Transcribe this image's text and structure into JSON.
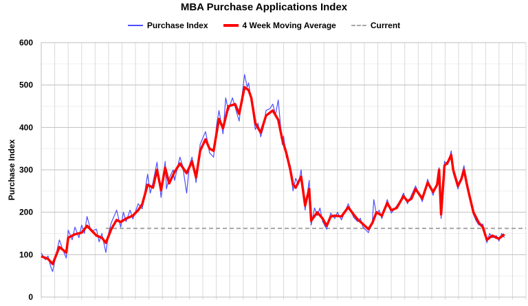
{
  "chart_data": {
    "type": "line",
    "title": "MBA Purchase Applications Index",
    "ylabel": "Purchase Index",
    "xlabel": "",
    "ylim": [
      0,
      600
    ],
    "yticks": [
      0,
      100,
      200,
      300,
      400,
      500,
      600
    ],
    "xlim": [
      1990,
      2026
    ],
    "grid": true,
    "legend": "top",
    "current_value": 162,
    "current_from": 1994.8,
    "series": [
      {
        "name": "Purchase Index",
        "color": "#4d4dff",
        "points": [
          [
            1990,
            104
          ],
          [
            1990.3,
            88
          ],
          [
            1990.5,
            97
          ],
          [
            1990.7,
            72
          ],
          [
            1990.85,
            60
          ],
          [
            1991.1,
            100
          ],
          [
            1991.35,
            135
          ],
          [
            1991.6,
            112
          ],
          [
            1991.86,
            92
          ],
          [
            1992,
            158
          ],
          [
            1992.3,
            135
          ],
          [
            1992.5,
            165
          ],
          [
            1992.8,
            140
          ],
          [
            1993,
            170
          ],
          [
            1993.2,
            150
          ],
          [
            1993.4,
            190
          ],
          [
            1993.7,
            155
          ],
          [
            1994.1,
            160
          ],
          [
            1994.3,
            130
          ],
          [
            1994.5,
            150
          ],
          [
            1994.8,
            105
          ],
          [
            1995,
            150
          ],
          [
            1995.2,
            175
          ],
          [
            1995.6,
            205
          ],
          [
            1995.9,
            165
          ],
          [
            1996.1,
            200
          ],
          [
            1996.3,
            178
          ],
          [
            1996.6,
            205
          ],
          [
            1996.8,
            184
          ],
          [
            1997.2,
            220
          ],
          [
            1997.5,
            208
          ],
          [
            1997.9,
            290
          ],
          [
            1998.1,
            245
          ],
          [
            1998.3,
            270
          ],
          [
            1998.6,
            318
          ],
          [
            1998.9,
            235
          ],
          [
            1999.2,
            320
          ],
          [
            1999.3,
            255
          ],
          [
            1999.5,
            280
          ],
          [
            1999.8,
            300
          ],
          [
            1999.9,
            275
          ],
          [
            2000.3,
            330
          ],
          [
            2000.5,
            310
          ],
          [
            2000.8,
            245
          ],
          [
            2001.0,
            310
          ],
          [
            2001.2,
            330
          ],
          [
            2001.5,
            270
          ],
          [
            2001.8,
            360
          ],
          [
            2002.2,
            390
          ],
          [
            2002.4,
            360
          ],
          [
            2002.5,
            340
          ],
          [
            2002.8,
            330
          ],
          [
            2003.0,
            400
          ],
          [
            2003.2,
            440
          ],
          [
            2003.5,
            385
          ],
          [
            2003.7,
            470
          ],
          [
            2003.9,
            440
          ],
          [
            2004.2,
            470
          ],
          [
            2004.4,
            448
          ],
          [
            2004.7,
            415
          ],
          [
            2004.9,
            470
          ],
          [
            2005.1,
            525
          ],
          [
            2005.3,
            495
          ],
          [
            2005.4,
            505
          ],
          [
            2005.6,
            462
          ],
          [
            2005.9,
            395
          ],
          [
            2006.1,
            410
          ],
          [
            2006.3,
            378
          ],
          [
            2006.5,
            400
          ],
          [
            2006.7,
            440
          ],
          [
            2007.0,
            445
          ],
          [
            2007.2,
            455
          ],
          [
            2007.4,
            430
          ],
          [
            2007.6,
            465
          ],
          [
            2007.9,
            360
          ],
          [
            2008.0,
            380
          ],
          [
            2008.2,
            330
          ],
          [
            2008.5,
            310
          ],
          [
            2008.7,
            250
          ],
          [
            2008.9,
            280
          ],
          [
            2009.1,
            265
          ],
          [
            2009.3,
            300
          ],
          [
            2009.6,
            205
          ],
          [
            2009.9,
            275
          ],
          [
            2010.05,
            170
          ],
          [
            2010.3,
            210
          ],
          [
            2010.5,
            192
          ],
          [
            2010.7,
            210
          ],
          [
            2010.9,
            178
          ],
          [
            2011.2,
            160
          ],
          [
            2011.5,
            198
          ],
          [
            2011.8,
            185
          ],
          [
            2012.0,
            200
          ],
          [
            2012.3,
            182
          ],
          [
            2012.8,
            220
          ],
          [
            2013.2,
            188
          ],
          [
            2013.5,
            178
          ],
          [
            2013.7,
            186
          ],
          [
            2013.9,
            165
          ],
          [
            2014.3,
            152
          ],
          [
            2014.6,
            180
          ],
          [
            2014.7,
            230
          ],
          [
            2014.9,
            195
          ],
          [
            2015.1,
            205
          ],
          [
            2015.3,
            185
          ],
          [
            2015.7,
            230
          ],
          [
            2016.0,
            198
          ],
          [
            2016.4,
            215
          ],
          [
            2016.7,
            230
          ],
          [
            2016.9,
            245
          ],
          [
            2017.2,
            220
          ],
          [
            2017.5,
            240
          ],
          [
            2017.8,
            262
          ],
          [
            2018.1,
            240
          ],
          [
            2018.3,
            225
          ],
          [
            2018.7,
            278
          ],
          [
            2019.1,
            240
          ],
          [
            2019.4,
            272
          ],
          [
            2019.55,
            305
          ],
          [
            2019.7,
            185
          ],
          [
            2019.95,
            320
          ],
          [
            2020.2,
            312
          ],
          [
            2020.45,
            345
          ],
          [
            2020.6,
            292
          ],
          [
            2020.95,
            255
          ],
          [
            2021.2,
            285
          ],
          [
            2021.4,
            310
          ],
          [
            2021.6,
            262
          ],
          [
            2021.8,
            235
          ],
          [
            2022.1,
            195
          ],
          [
            2022.3,
            180
          ],
          [
            2022.5,
            170
          ],
          [
            2022.8,
            172
          ],
          [
            2023.1,
            128
          ],
          [
            2023.3,
            150
          ],
          [
            2023.5,
            140
          ],
          [
            2023.8,
            145
          ],
          [
            2024.0,
            132
          ],
          [
            2024.2,
            150
          ],
          [
            2024.4,
            140
          ]
        ]
      },
      {
        "name": "4 Week Moving Average",
        "color": "#ff0000",
        "points": [
          [
            1990,
            96
          ],
          [
            1990.5,
            90
          ],
          [
            1990.85,
            78
          ],
          [
            1991.35,
            118
          ],
          [
            1991.86,
            105
          ],
          [
            1992,
            140
          ],
          [
            1992.5,
            148
          ],
          [
            1993,
            152
          ],
          [
            1993.4,
            168
          ],
          [
            1994.1,
            145
          ],
          [
            1994.5,
            140
          ],
          [
            1994.8,
            128
          ],
          [
            1995.2,
            160
          ],
          [
            1995.6,
            182
          ],
          [
            1995.9,
            177
          ],
          [
            1996.3,
            185
          ],
          [
            1996.8,
            192
          ],
          [
            1997.2,
            205
          ],
          [
            1997.5,
            219
          ],
          [
            1997.9,
            265
          ],
          [
            1998.3,
            258
          ],
          [
            1998.6,
            300
          ],
          [
            1998.9,
            252
          ],
          [
            1999.2,
            305
          ],
          [
            1999.5,
            268
          ],
          [
            1999.9,
            295
          ],
          [
            2000.3,
            315
          ],
          [
            2000.8,
            292
          ],
          [
            2001.2,
            320
          ],
          [
            2001.5,
            282
          ],
          [
            2001.8,
            345
          ],
          [
            2002.2,
            372
          ],
          [
            2002.5,
            350
          ],
          [
            2002.8,
            345
          ],
          [
            2003.2,
            420
          ],
          [
            2003.5,
            398
          ],
          [
            2003.9,
            450
          ],
          [
            2004.4,
            455
          ],
          [
            2004.7,
            432
          ],
          [
            2005.1,
            495
          ],
          [
            2005.4,
            488
          ],
          [
            2005.6,
            470
          ],
          [
            2005.9,
            410
          ],
          [
            2006.3,
            388
          ],
          [
            2006.7,
            428
          ],
          [
            2007.2,
            440
          ],
          [
            2007.6,
            418
          ],
          [
            2007.9,
            372
          ],
          [
            2008.2,
            340
          ],
          [
            2008.5,
            300
          ],
          [
            2008.7,
            265
          ],
          [
            2008.9,
            258
          ],
          [
            2009.3,
            284
          ],
          [
            2009.6,
            216
          ],
          [
            2009.9,
            255
          ],
          [
            2010.05,
            180
          ],
          [
            2010.5,
            200
          ],
          [
            2010.9,
            185
          ],
          [
            2011.2,
            168
          ],
          [
            2011.5,
            190
          ],
          [
            2011.8,
            192
          ],
          [
            2012.3,
            190
          ],
          [
            2012.8,
            212
          ],
          [
            2013.2,
            195
          ],
          [
            2013.5,
            183
          ],
          [
            2013.9,
            172
          ],
          [
            2014.3,
            160
          ],
          [
            2014.6,
            175
          ],
          [
            2014.9,
            200
          ],
          [
            2015.3,
            192
          ],
          [
            2015.7,
            222
          ],
          [
            2016.0,
            205
          ],
          [
            2016.4,
            210
          ],
          [
            2016.9,
            238
          ],
          [
            2017.2,
            226
          ],
          [
            2017.5,
            232
          ],
          [
            2017.8,
            255
          ],
          [
            2018.3,
            232
          ],
          [
            2018.7,
            270
          ],
          [
            2019.1,
            248
          ],
          [
            2019.4,
            265
          ],
          [
            2019.55,
            300
          ],
          [
            2019.7,
            195
          ],
          [
            2019.95,
            310
          ],
          [
            2020.2,
            318
          ],
          [
            2020.45,
            335
          ],
          [
            2020.6,
            300
          ],
          [
            2020.95,
            262
          ],
          [
            2021.2,
            278
          ],
          [
            2021.4,
            300
          ],
          [
            2021.6,
            268
          ],
          [
            2021.8,
            240
          ],
          [
            2022.1,
            200
          ],
          [
            2022.5,
            175
          ],
          [
            2022.8,
            165
          ],
          [
            2023.1,
            135
          ],
          [
            2023.5,
            145
          ],
          [
            2023.8,
            140
          ],
          [
            2024.0,
            138
          ],
          [
            2024.4,
            148
          ]
        ]
      }
    ],
    "legend_entries": [
      "Purchase Index",
      "4 Week Moving Average",
      "Current"
    ],
    "current_color": "#a6a6a6"
  }
}
